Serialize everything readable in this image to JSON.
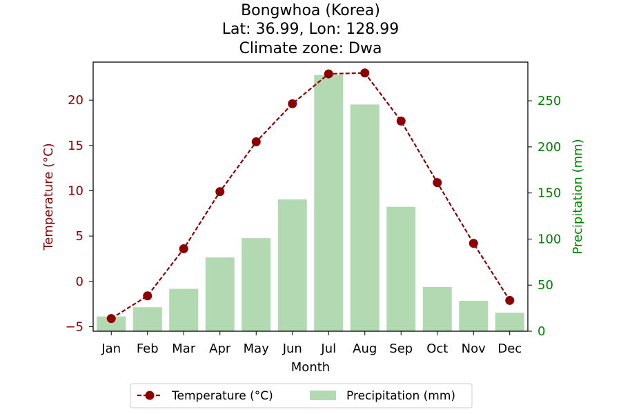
{
  "chart_data": {
    "type": "bar",
    "title_lines": [
      "Bongwhoa (Korea)",
      "Lat: 36.99, Lon: 128.99",
      "Climate zone: Dwa"
    ],
    "xlabel": "Month",
    "categories": [
      "Jan",
      "Feb",
      "Mar",
      "Apr",
      "May",
      "Jun",
      "Jul",
      "Aug",
      "Sep",
      "Oct",
      "Nov",
      "Dec"
    ],
    "series": [
      {
        "name": "Temperature (°C)",
        "kind": "line",
        "axis": "left",
        "color": "#8b0000",
        "line_style": "dashed",
        "marker": "circle",
        "values": [
          -4.1,
          -1.6,
          3.6,
          9.9,
          15.4,
          19.6,
          22.9,
          23.0,
          17.7,
          10.9,
          4.2,
          -2.1
        ]
      },
      {
        "name": "Precipitation (mm)",
        "kind": "bar",
        "axis": "right",
        "color": "#b2d9b2",
        "values": [
          16,
          26,
          46,
          80,
          101,
          143,
          278,
          246,
          135,
          48,
          33,
          20
        ]
      }
    ],
    "y_left": {
      "label": "Temperature (°C)",
      "color": "#8b0000",
      "range": [
        -5.5,
        24.2
      ],
      "ticks": [
        -5,
        0,
        5,
        10,
        15,
        20
      ],
      "tick_labels": [
        "−5",
        "0",
        "5",
        "10",
        "15",
        "20"
      ]
    },
    "y_right": {
      "label": "Precipitation (mm)",
      "color": "#008000",
      "range": [
        0,
        292
      ],
      "ticks": [
        0,
        50,
        100,
        150,
        200,
        250
      ],
      "tick_labels": [
        "0",
        "50",
        "100",
        "150",
        "200",
        "250"
      ]
    },
    "grid": false,
    "legend_position": "bottom-center"
  }
}
